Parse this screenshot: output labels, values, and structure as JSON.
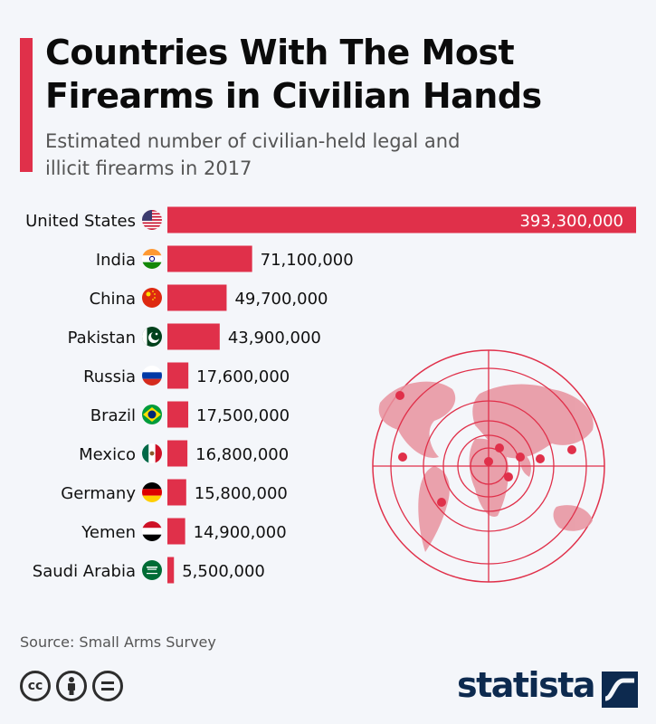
{
  "header": {
    "title": "Countries With The Most Firearms in Civilian Hands",
    "subtitle": "Estimated number of civilian-held legal and illicit firearms in 2017"
  },
  "chart_data": {
    "type": "bar",
    "orientation": "horizontal",
    "title": "Countries With The Most Firearms in Civilian Hands",
    "subtitle": "Estimated number of civilian-held legal and illicit firearms in 2017",
    "categories": [
      "United States",
      "India",
      "China",
      "Pakistan",
      "Russia",
      "Brazil",
      "Mexico",
      "Germany",
      "Yemen",
      "Saudi Arabia"
    ],
    "values": [
      393300000,
      71100000,
      49700000,
      43900000,
      17600000,
      17500000,
      16800000,
      15800000,
      14900000,
      5500000
    ],
    "value_labels": [
      "393,300,000",
      "71,100,000",
      "49,700,000",
      "43,900,000",
      "17,600,000",
      "17,500,000",
      "16,800,000",
      "15,800,000",
      "14,900,000",
      "5,500,000"
    ],
    "flag_icons": [
      "us-flag-icon",
      "india-flag-icon",
      "china-flag-icon",
      "pakistan-flag-icon",
      "russia-flag-icon",
      "brazil-flag-icon",
      "mexico-flag-icon",
      "germany-flag-icon",
      "yemen-flag-icon",
      "saudi-arabia-flag-icon"
    ],
    "xlim": [
      0,
      393300000
    ],
    "grid": false,
    "legend": "none",
    "bar_color": "#e0304a"
  },
  "footer": {
    "source": "Source: Small Arms Survey",
    "brand": "statista",
    "license_icons": [
      "cc-icon",
      "attribution-icon",
      "no-derivatives-icon"
    ]
  },
  "colors": {
    "accent": "#e0304a",
    "background": "#f4f6fa",
    "brand": "#0d2a4f",
    "target": "#e8929e"
  }
}
